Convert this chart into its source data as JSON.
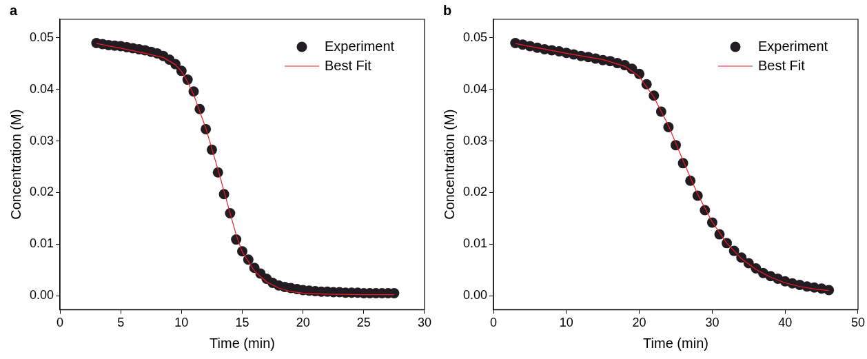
{
  "chart_data": [
    {
      "type": "scatter",
      "title": "a",
      "xlabel": "Time (min)",
      "ylabel": "Concentration (M)",
      "xlim": [
        0,
        30
      ],
      "xticks": [
        0,
        5,
        10,
        15,
        20,
        25,
        30
      ],
      "ylim": [
        -0.0027,
        0.0536
      ],
      "yticks": [
        {
          "value": 0,
          "label": "0.00"
        },
        {
          "value": 0.01,
          "label": "0.01"
        },
        {
          "value": 0.02,
          "label": "0.02"
        },
        {
          "value": 0.03,
          "label": "0.03"
        },
        {
          "value": 0.04,
          "label": "0.04"
        },
        {
          "value": 0.05,
          "label": "0.05"
        }
      ],
      "grid": false,
      "legend": "top right",
      "series": [
        {
          "name": "Experiment",
          "type": "scatter",
          "marker": "circle",
          "color": "#231b22",
          "x": [
            3,
            3.5,
            4,
            4.5,
            5,
            5.5,
            6,
            6.5,
            7,
            7.5,
            8,
            8.5,
            9,
            9.5,
            10,
            10.5,
            11,
            11.5,
            12,
            12.5,
            13,
            13.5,
            14,
            14.5,
            15,
            15.5,
            16,
            16.5,
            17,
            17.5,
            18,
            18.5,
            19,
            19.5,
            20,
            20.5,
            21,
            21.5,
            22,
            22.5,
            23,
            23.5,
            24,
            24.5,
            25,
            25.5,
            26,
            26.5,
            27,
            27.5
          ],
          "values": [
            0.049,
            0.0488,
            0.0486,
            0.0485,
            0.0484,
            0.0482,
            0.048,
            0.0478,
            0.0476,
            0.0473,
            0.047,
            0.0465,
            0.0458,
            0.0449,
            0.0436,
            0.0419,
            0.0396,
            0.0362,
            0.0323,
            0.0283,
            0.0239,
            0.0197,
            0.016,
            0.0109,
            0.0086,
            0.007,
            0.0054,
            0.0043,
            0.0033,
            0.0025,
            0.002,
            0.0017,
            0.0015,
            0.0013,
            0.0011,
            0.001,
            0.0009,
            0.0008,
            0.0008,
            0.0007,
            0.0007,
            0.0006,
            0.0006,
            0.0006,
            0.0005,
            0.0005,
            0.0005,
            0.0005,
            0.0005,
            0.0005
          ]
        },
        {
          "name": "Best Fit",
          "type": "line",
          "marker": "none",
          "color": "#ee1c25",
          "x": [
            3,
            5,
            7,
            8.5,
            9.5,
            10,
            10.5,
            11,
            12,
            13,
            14,
            14.5,
            15,
            16,
            17,
            18,
            19,
            20,
            22,
            25,
            27.5
          ],
          "values": [
            0.0489,
            0.048,
            0.047,
            0.0462,
            0.0448,
            0.0435,
            0.0415,
            0.039,
            0.0325,
            0.0245,
            0.016,
            0.0118,
            0.0085,
            0.0048,
            0.0027,
            0.0015,
            0.0008,
            0.0005,
            0.0003,
            0.0002,
            0.0002
          ]
        }
      ]
    },
    {
      "type": "scatter",
      "title": "b",
      "xlabel": "Time (min)",
      "ylabel": "Concentration (M)",
      "xlim": [
        0,
        50
      ],
      "xticks": [
        0,
        10,
        20,
        30,
        40,
        50
      ],
      "ylim": [
        -0.0027,
        0.0536
      ],
      "yticks": [
        {
          "value": 0,
          "label": "0.00"
        },
        {
          "value": 0.01,
          "label": "0.01"
        },
        {
          "value": 0.02,
          "label": "0.02"
        },
        {
          "value": 0.03,
          "label": "0.03"
        },
        {
          "value": 0.04,
          "label": "0.04"
        },
        {
          "value": 0.05,
          "label": "0.05"
        }
      ],
      "grid": false,
      "legend": "top right",
      "series": [
        {
          "name": "Experiment",
          "type": "scatter",
          "marker": "circle",
          "color": "#231b22",
          "x": [
            3,
            4,
            5,
            6,
            7,
            8,
            9,
            10,
            11,
            12,
            13,
            14,
            15,
            16,
            17,
            18,
            19,
            20,
            21,
            22,
            23,
            24,
            25,
            26,
            27,
            28,
            29,
            30,
            31,
            32,
            33,
            34,
            35,
            36,
            37,
            38,
            39,
            40,
            41,
            42,
            43,
            44,
            45,
            46
          ],
          "values": [
            0.049,
            0.0487,
            0.0484,
            0.0481,
            0.0478,
            0.0476,
            0.0474,
            0.0471,
            0.0468,
            0.0465,
            0.0463,
            0.046,
            0.0457,
            0.0455,
            0.0451,
            0.0447,
            0.044,
            0.043,
            0.041,
            0.0388,
            0.0357,
            0.0327,
            0.0292,
            0.0257,
            0.0223,
            0.0194,
            0.0166,
            0.0142,
            0.0119,
            0.0102,
            0.0087,
            0.0074,
            0.0063,
            0.0053,
            0.0044,
            0.0038,
            0.0033,
            0.0028,
            0.0024,
            0.0021,
            0.0018,
            0.0016,
            0.0014,
            0.0011
          ]
        },
        {
          "name": "Best Fit",
          "type": "line",
          "marker": "none",
          "color": "#ee1c25",
          "x": [
            3,
            10,
            15,
            18,
            20,
            21,
            22,
            24,
            26,
            28,
            30,
            32,
            34,
            36,
            38,
            40,
            42,
            44,
            46
          ],
          "values": [
            0.0489,
            0.047,
            0.0458,
            0.0445,
            0.0425,
            0.0405,
            0.0385,
            0.033,
            0.0262,
            0.0197,
            0.0143,
            0.0102,
            0.0072,
            0.0051,
            0.0036,
            0.0025,
            0.0018,
            0.0013,
            0.001
          ]
        }
      ]
    }
  ]
}
